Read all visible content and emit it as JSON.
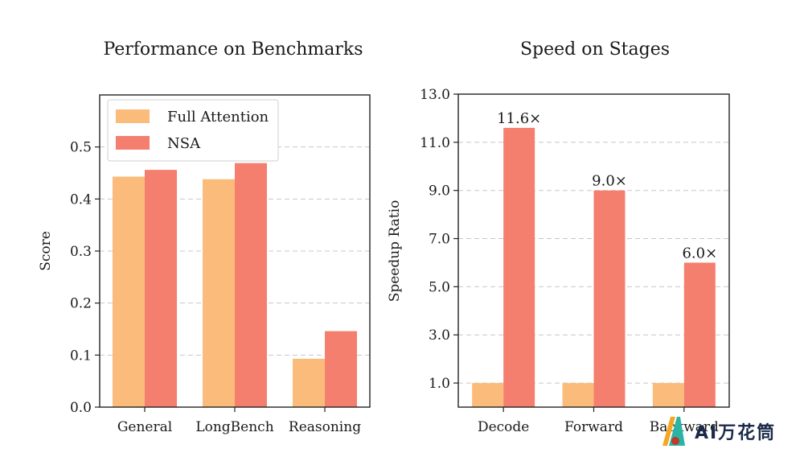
{
  "chart_data": [
    {
      "type": "bar",
      "title": "Performance on Benchmarks",
      "xlabel": "",
      "ylabel": "Score",
      "categories": [
        "General",
        "LongBench",
        "Reasoning"
      ],
      "series": [
        {
          "name": "Full Attention",
          "values": [
            0.443,
            0.438,
            0.093
          ],
          "color": "#FBBB7A"
        },
        {
          "name": "NSA",
          "values": [
            0.456,
            0.469,
            0.146
          ],
          "color": "#F57F6E"
        }
      ],
      "ylim": [
        0,
        0.6
      ],
      "yticks": [
        0.0,
        0.1,
        0.2,
        0.3,
        0.4,
        0.5
      ],
      "ytick_labels": [
        "0.0",
        "0.1",
        "0.2",
        "0.3",
        "0.4",
        "0.5"
      ],
      "grid": true,
      "legend_position": "top-left"
    },
    {
      "type": "bar",
      "title": "Speed on Stages",
      "xlabel": "",
      "ylabel": "Speedup Ratio",
      "categories": [
        "Decode",
        "Forward",
        "Backward"
      ],
      "series": [
        {
          "name": "Full Attention",
          "values": [
            1.0,
            1.0,
            1.0
          ],
          "color": "#FBBB7A"
        },
        {
          "name": "NSA",
          "values": [
            11.6,
            9.0,
            6.0
          ],
          "color": "#F57F6E"
        }
      ],
      "annotations": [
        "11.6×",
        "9.0×",
        "6.0×"
      ],
      "ylim": [
        0,
        13.0
      ],
      "yticks": [
        1.0,
        3.0,
        5.0,
        7.0,
        9.0,
        11.0,
        13.0
      ],
      "ytick_labels": [
        "1.0",
        "3.0",
        "5.0",
        "7.0",
        "9.0",
        "11.0",
        "13.0"
      ],
      "grid": true
    }
  ],
  "watermark": {
    "text": "AI万花筒",
    "colors": [
      "#F5A623",
      "#2BB3A4",
      "#1B2A4A"
    ]
  }
}
